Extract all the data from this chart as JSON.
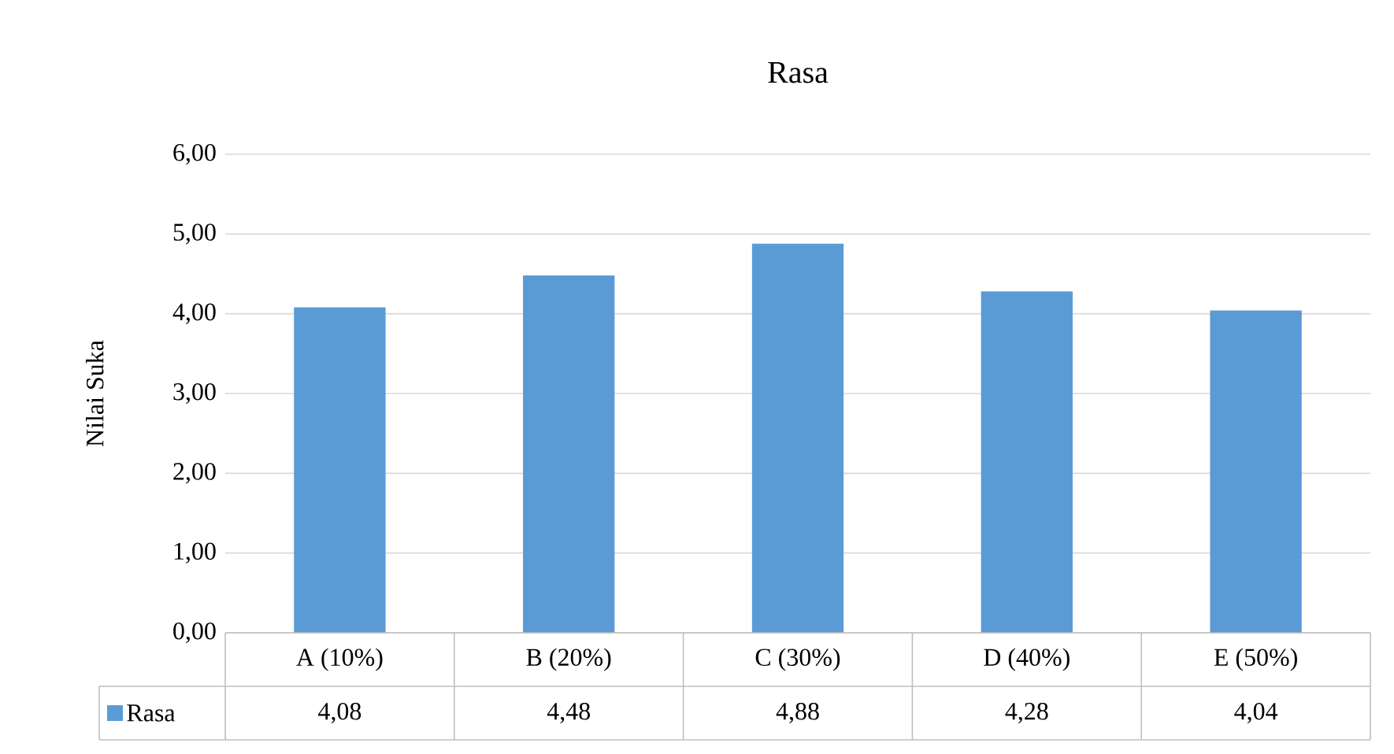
{
  "chart_data": {
    "type": "bar",
    "title": "Rasa",
    "ylabel": "Nilai Suka",
    "categories": [
      "A (10%)",
      "B (20%)",
      "C (30%)",
      "D (40%)",
      "E (50%)"
    ],
    "series": [
      {
        "name": "Rasa",
        "color": "#5b9bd5",
        "values": [
          4.08,
          4.48,
          4.88,
          4.28,
          4.04
        ],
        "value_labels": [
          "4,08",
          "4,48",
          "4,88",
          "4,28",
          "4,04"
        ]
      }
    ],
    "ylim": [
      0,
      6
    ],
    "yticks": [
      {
        "value": 0,
        "label": "0,00"
      },
      {
        "value": 1,
        "label": "1,00"
      },
      {
        "value": 2,
        "label": "2,00"
      },
      {
        "value": 3,
        "label": "3,00"
      },
      {
        "value": 4,
        "label": "4,00"
      },
      {
        "value": 5,
        "label": "5,00"
      },
      {
        "value": 6,
        "label": "6,00"
      }
    ],
    "grid": "y",
    "legend": "bottom"
  }
}
